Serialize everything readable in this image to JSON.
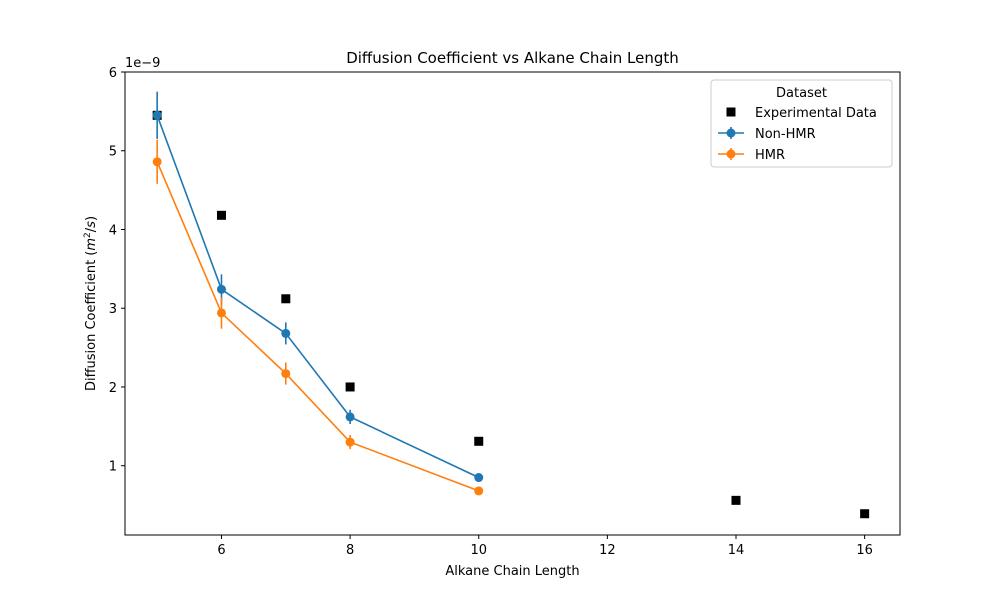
{
  "chart_data": {
    "type": "scatter",
    "title": "Diffusion Coefficient vs Alkane Chain Length",
    "xlabel": "Alkane Chain Length",
    "ylabel_prefix": "Diffusion Coefficient (",
    "ylabel_unit_num": "m",
    "ylabel_unit_sup": "2",
    "ylabel_unit_den": "s",
    "ylabel_suffix": ")",
    "y_multiplier": "1e−9",
    "xlim": [
      4.5,
      16.55
    ],
    "ylim": [
      0.12,
      6.0
    ],
    "xticks": [
      6,
      8,
      10,
      12,
      14,
      16
    ],
    "yticks": [
      1,
      2,
      3,
      4,
      5,
      6
    ],
    "grid": false,
    "legend": {
      "title": "Dataset",
      "position": "top-right"
    },
    "series": [
      {
        "name": "Experimental Data",
        "style": "marker-square",
        "color": "#000000",
        "x": [
          5,
          6,
          7,
          8,
          10,
          14,
          16
        ],
        "y": [
          5.45,
          4.18,
          3.12,
          2.0,
          1.31,
          0.56,
          0.39
        ]
      },
      {
        "name": "Non-HMR",
        "style": "line-marker-errorbar",
        "color": "#1f77b4",
        "x": [
          5,
          6,
          7,
          8,
          10
        ],
        "y": [
          5.45,
          3.24,
          2.68,
          1.62,
          0.85
        ],
        "err": [
          0.3,
          0.19,
          0.14,
          0.09,
          0.04
        ]
      },
      {
        "name": "HMR",
        "style": "line-marker-errorbar",
        "color": "#ff7f0e",
        "x": [
          5,
          6,
          7,
          8,
          10
        ],
        "y": [
          4.86,
          2.94,
          2.17,
          1.3,
          0.68
        ],
        "err": [
          0.28,
          0.2,
          0.14,
          0.09,
          0.03
        ]
      }
    ]
  }
}
